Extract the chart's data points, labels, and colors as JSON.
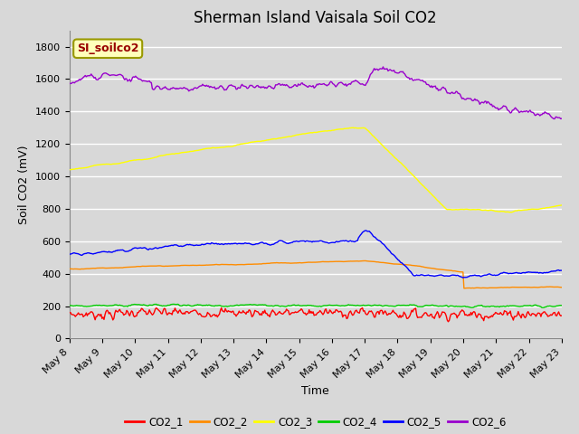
{
  "title": "Sherman Island Vaisala Soil CO2",
  "xlabel": "Time",
  "ylabel": "Soil CO2 (mV)",
  "legend_label": "SI_soilco2",
  "ylim": [
    0,
    1900
  ],
  "yticks": [
    0,
    200,
    400,
    600,
    800,
    1000,
    1200,
    1400,
    1600,
    1800
  ],
  "series_names": [
    "CO2_1",
    "CO2_2",
    "CO2_3",
    "CO2_4",
    "CO2_5",
    "CO2_6"
  ],
  "series_colors": [
    "#ff0000",
    "#ff8c00",
    "#ffff00",
    "#00cc00",
    "#0000ff",
    "#9900cc"
  ],
  "n_points": 500,
  "xtick_labels": [
    "May 8",
    "May 9",
    "May 10",
    "May 11",
    "May 12",
    "May 13",
    "May 14",
    "May 15",
    "May 16",
    "May 17",
    "May 18",
    "May 19",
    "May 20",
    "May 21",
    "May 22",
    "May 23"
  ],
  "background_color": "#d8d8d8",
  "plot_bg_color": "#d8d8d8",
  "grid_color": "#ffffff",
  "title_fontsize": 12,
  "axis_fontsize": 9,
  "tick_fontsize": 8,
  "legend_label_color": "#990000",
  "legend_box_facecolor": "#ffffbb",
  "legend_box_edgecolor": "#999900"
}
